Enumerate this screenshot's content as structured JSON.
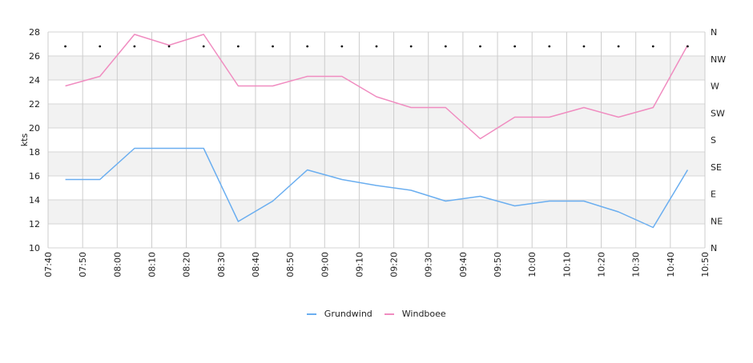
{
  "chart_data": {
    "type": "line",
    "ylabel": "kts",
    "ylim": [
      10,
      28
    ],
    "y_ticks": [
      "10",
      "12",
      "14",
      "16",
      "18",
      "20",
      "22",
      "24",
      "26",
      "28"
    ],
    "x_ticks": [
      "07:40",
      "07:50",
      "08:00",
      "08:10",
      "08:20",
      "08:30",
      "08:40",
      "08:50",
      "09:00",
      "09:10",
      "09:20",
      "09:30",
      "09:40",
      "09:50",
      "10:00",
      "10:10",
      "10:20",
      "10:30",
      "10:40",
      "10:50"
    ],
    "right_axis_ticks": [
      "N",
      "NE",
      "E",
      "SE",
      "S",
      "SW",
      "W",
      "NW",
      "N"
    ],
    "x": [
      "07:45",
      "07:55",
      "08:05",
      "08:15",
      "08:25",
      "08:35",
      "08:45",
      "08:55",
      "09:05",
      "09:15",
      "09:25",
      "09:35",
      "09:45",
      "09:55",
      "10:05",
      "10:15",
      "10:25",
      "10:35",
      "10:45"
    ],
    "series": [
      {
        "name": "Grundwind",
        "color": "#6aaef0",
        "values": [
          15.7,
          15.7,
          18.3,
          18.3,
          18.3,
          12.2,
          13.9,
          16.5,
          15.7,
          15.2,
          14.8,
          13.9,
          14.3,
          13.5,
          13.9,
          13.9,
          13.0,
          11.7,
          16.5
        ]
      },
      {
        "name": "Windboee",
        "color": "#f08cc0",
        "values": [
          23.5,
          24.3,
          27.8,
          26.9,
          27.8,
          23.5,
          23.5,
          24.3,
          24.3,
          22.6,
          21.7,
          21.7,
          19.1,
          20.9,
          20.9,
          21.7,
          20.9,
          21.7,
          26.9
        ]
      }
    ],
    "direction_marker_value": 26.8,
    "grid": true,
    "legend_position": "bottom"
  }
}
